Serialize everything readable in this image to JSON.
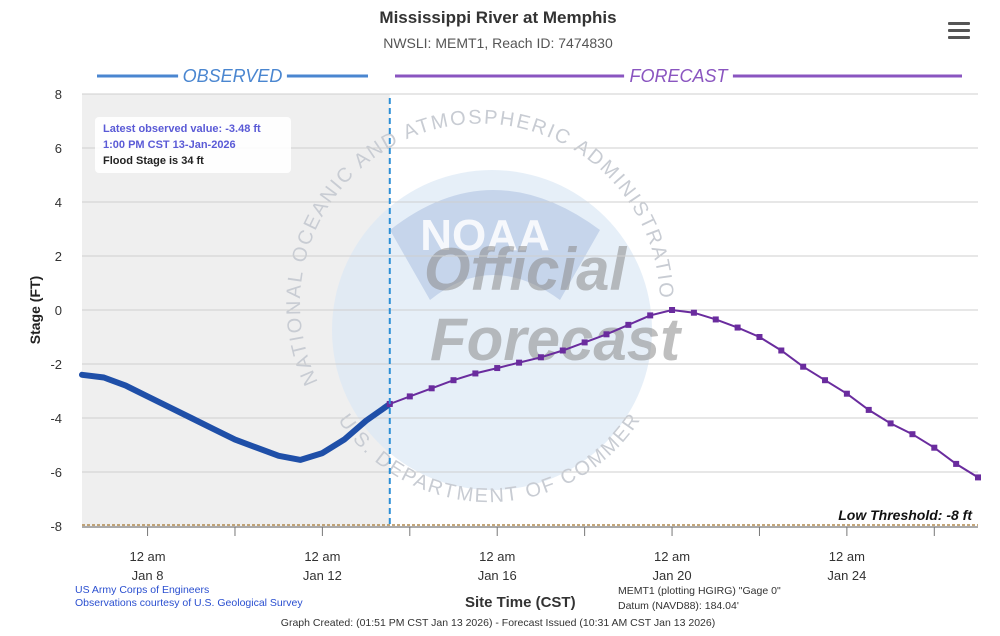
{
  "title": "Mississippi River at Memphis",
  "subtitle": "NWSLI: MEMT1, Reach ID: 7474830",
  "menu_icon": "hamburger-menu-icon",
  "info": {
    "latest": "Latest observed value: -3.48 ft",
    "time": "1:00 PM CST 13-Jan-2026",
    "flood": "Flood Stage is 34 ft"
  },
  "credits": {
    "line1": "US Army Corps of Engineers",
    "line2": "Observations courtesy of U.S. Geological Survey"
  },
  "gauge": {
    "line1": "MEMT1 (plotting HGIRG) \"Gage 0\"",
    "line2": "Datum (NAVD88): 184.04'"
  },
  "footer": "Graph Created: (01:51 PM CST Jan 13 2026) - Forecast Issued (10:31 AM CST Jan 13 2026)",
  "watermark": {
    "ring_text": "NATIONAL OCEANIC AND ATMOSPHERIC ADMINISTRATION",
    "bottom_text": "U.S. DEPARTMENT OF COMMERCE",
    "logo": "NOAA",
    "line1": "Official",
    "line2": "Forecast"
  },
  "colors": {
    "observed": "#1f4fa8",
    "observed_header": "#4a86d0",
    "forecast": "#6a2c9e",
    "forecast_header": "#8a55c0",
    "threshold": "#b08a50",
    "shade": "#efefef"
  },
  "chart_data": {
    "type": "line",
    "xlabel": "Site Time (CST)",
    "ylabel": "Stage (FT)",
    "ylim": [
      -8,
      8
    ],
    "yticks": [
      8,
      6,
      4,
      2,
      0,
      -2,
      -4,
      -6,
      -8
    ],
    "xlim": [
      "2026-01-06 12:00",
      "2026-01-26 24:00"
    ],
    "xticks": [
      {
        "x": "2026-01-08 00:00",
        "label": [
          "12 am",
          "Jan 8"
        ]
      },
      {
        "x": "2026-01-12 00:00",
        "label": [
          "12 am",
          "Jan 12"
        ]
      },
      {
        "x": "2026-01-16 00:00",
        "label": [
          "12 am",
          "Jan 16"
        ]
      },
      {
        "x": "2026-01-20 00:00",
        "label": [
          "12 am",
          "Jan 20"
        ]
      },
      {
        "x": "2026-01-24 00:00",
        "label": [
          "12 am",
          "Jan 24"
        ]
      }
    ],
    "grid": true,
    "observed_header": "OBSERVED",
    "forecast_header": "FORECAST",
    "current_time": "2026-01-13 13:00",
    "low_threshold": {
      "value": -8,
      "label": "Low Threshold: -8 ft"
    },
    "series": [
      {
        "kind": "observed",
        "points": [
          [
            "2026-01-06 12:00",
            -2.4
          ],
          [
            "2026-01-07 00:00",
            -2.5
          ],
          [
            "2026-01-07 12:00",
            -2.8
          ],
          [
            "2026-01-08 00:00",
            -3.2
          ],
          [
            "2026-01-08 12:00",
            -3.6
          ],
          [
            "2026-01-09 00:00",
            -4.0
          ],
          [
            "2026-01-09 12:00",
            -4.4
          ],
          [
            "2026-01-10 00:00",
            -4.8
          ],
          [
            "2026-01-10 12:00",
            -5.1
          ],
          [
            "2026-01-11 00:00",
            -5.4
          ],
          [
            "2026-01-11 12:00",
            -5.55
          ],
          [
            "2026-01-12 00:00",
            -5.3
          ],
          [
            "2026-01-12 12:00",
            -4.8
          ],
          [
            "2026-01-13 00:00",
            -4.1
          ],
          [
            "2026-01-13 13:00",
            -3.48
          ]
        ]
      },
      {
        "kind": "forecast",
        "points": [
          [
            "2026-01-13 13:00",
            -3.48
          ],
          [
            "2026-01-14 00:00",
            -3.2
          ],
          [
            "2026-01-14 12:00",
            -2.9
          ],
          [
            "2026-01-15 00:00",
            -2.6
          ],
          [
            "2026-01-15 12:00",
            -2.35
          ],
          [
            "2026-01-16 00:00",
            -2.15
          ],
          [
            "2026-01-16 12:00",
            -1.95
          ],
          [
            "2026-01-17 00:00",
            -1.75
          ],
          [
            "2026-01-17 12:00",
            -1.5
          ],
          [
            "2026-01-18 00:00",
            -1.2
          ],
          [
            "2026-01-18 12:00",
            -0.9
          ],
          [
            "2026-01-19 00:00",
            -0.55
          ],
          [
            "2026-01-19 12:00",
            -0.2
          ],
          [
            "2026-01-20 00:00",
            0.0
          ],
          [
            "2026-01-20 12:00",
            -0.1
          ],
          [
            "2026-01-21 00:00",
            -0.35
          ],
          [
            "2026-01-21 12:00",
            -0.65
          ],
          [
            "2026-01-22 00:00",
            -1.0
          ],
          [
            "2026-01-22 12:00",
            -1.5
          ],
          [
            "2026-01-23 00:00",
            -2.1
          ],
          [
            "2026-01-23 12:00",
            -2.6
          ],
          [
            "2026-01-24 00:00",
            -3.1
          ],
          [
            "2026-01-24 12:00",
            -3.7
          ],
          [
            "2026-01-25 00:00",
            -4.2
          ],
          [
            "2026-01-25 12:00",
            -4.6
          ],
          [
            "2026-01-26 00:00",
            -5.1
          ],
          [
            "2026-01-26 12:00",
            -5.7
          ],
          [
            "2026-01-27 00:00",
            -6.2
          ]
        ]
      }
    ]
  }
}
